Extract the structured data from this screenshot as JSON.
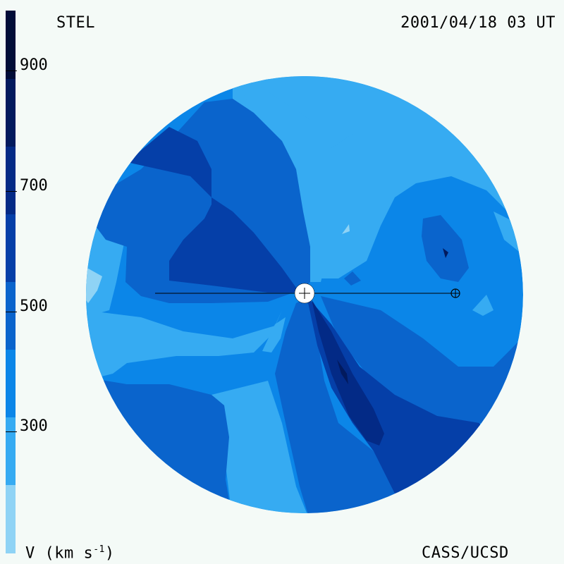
{
  "header": {
    "observatory": "STEL",
    "datetime": "2001/04/18 03 UT"
  },
  "footer": {
    "credit": "CASS/UCSD",
    "units_prefix": "V (km s",
    "units_exp": "-1",
    "units_suffix": ")"
  },
  "colorbar": {
    "ticks": [
      "900",
      "700",
      "500",
      "300"
    ],
    "tick_values": [
      900,
      700,
      500,
      300
    ],
    "range": [
      200,
      1000
    ],
    "levels": [
      {
        "min": 200,
        "max": 300,
        "color": "#8fd3f5"
      },
      {
        "min": 300,
        "max": 400,
        "color": "#36abf2"
      },
      {
        "min": 400,
        "max": 500,
        "color": "#0b86e8"
      },
      {
        "min": 500,
        "max": 600,
        "color": "#0a64cc"
      },
      {
        "min": 600,
        "max": 700,
        "color": "#053fa8"
      },
      {
        "min": 700,
        "max": 800,
        "color": "#032a86"
      },
      {
        "min": 800,
        "max": 900,
        "color": "#021a5e"
      },
      {
        "min": 900,
        "max": 1000,
        "color": "#010d38"
      }
    ]
  },
  "markers": {
    "sun": "sun-symbol",
    "earth": "earth-symbol"
  }
}
